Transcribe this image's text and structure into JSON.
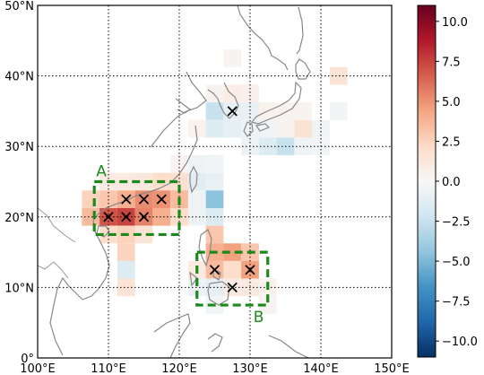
{
  "map": {
    "extent": {
      "lon": [
        100,
        150
      ],
      "lat": [
        0,
        50
      ]
    },
    "lon_ticks": [
      {
        "value": 100,
        "label": "100°E"
      },
      {
        "value": 110,
        "label": "110°E"
      },
      {
        "value": 120,
        "label": "120°E"
      },
      {
        "value": 130,
        "label": "130°E"
      },
      {
        "value": 140,
        "label": "140°E"
      },
      {
        "value": 150,
        "label": "150°E"
      }
    ],
    "lat_ticks": [
      {
        "value": 0,
        "label": "0°"
      },
      {
        "value": 10,
        "label": "10°N"
      },
      {
        "value": 20,
        "label": "20°N"
      },
      {
        "value": 30,
        "label": "30°N"
      },
      {
        "value": 40,
        "label": "40°N"
      },
      {
        "value": 50,
        "label": "50°N"
      }
    ],
    "grid_lon": [
      110,
      120,
      130,
      140
    ],
    "grid_lat": [
      10,
      20,
      30,
      40
    ],
    "grid_style": "dotted",
    "coastline_color": "#888888",
    "cell_size_deg": 2.5,
    "cells": [
      {
        "lon": 127.5,
        "lat": 42.5,
        "v": 0.3
      },
      {
        "lon": 142.5,
        "lat": 40.0,
        "v": 1.5
      },
      {
        "lon": 125.0,
        "lat": 37.5,
        "v": 0.3
      },
      {
        "lon": 127.5,
        "lat": 37.5,
        "v": 0.8
      },
      {
        "lon": 130.0,
        "lat": 37.5,
        "v": 0.6
      },
      {
        "lon": 132.5,
        "lat": 35.0,
        "v": 0.5
      },
      {
        "lon": 135.0,
        "lat": 35.0,
        "v": 0.4
      },
      {
        "lon": 137.5,
        "lat": 35.0,
        "v": 0.3
      },
      {
        "lon": 142.5,
        "lat": 35.0,
        "v": -0.3
      },
      {
        "lon": 125.0,
        "lat": 35.0,
        "v": -2.5
      },
      {
        "lon": 127.5,
        "lat": 35.0,
        "v": -1.0
      },
      {
        "lon": 130.0,
        "lat": 35.0,
        "v": -0.8
      },
      {
        "lon": 122.5,
        "lat": 32.5,
        "v": 0.5
      },
      {
        "lon": 125.0,
        "lat": 32.5,
        "v": -1.5
      },
      {
        "lon": 127.5,
        "lat": 32.5,
        "v": -1.0
      },
      {
        "lon": 130.0,
        "lat": 32.5,
        "v": -0.6
      },
      {
        "lon": 132.5,
        "lat": 32.5,
        "v": -0.4
      },
      {
        "lon": 135.0,
        "lat": 32.5,
        "v": 0.3
      },
      {
        "lon": 137.5,
        "lat": 32.5,
        "v": 1.6
      },
      {
        "lon": 140.0,
        "lat": 32.5,
        "v": -0.4
      },
      {
        "lon": 130.0,
        "lat": 30.0,
        "v": -0.6
      },
      {
        "lon": 132.5,
        "lat": 30.0,
        "v": -1.5
      },
      {
        "lon": 135.0,
        "lat": 30.0,
        "v": -2.5
      },
      {
        "lon": 137.5,
        "lat": 30.0,
        "v": -0.5
      },
      {
        "lon": 140.0,
        "lat": 30.0,
        "v": -0.3
      },
      {
        "lon": 120.0,
        "lat": 27.5,
        "v": 0.3
      },
      {
        "lon": 122.5,
        "lat": 27.5,
        "v": -0.6
      },
      {
        "lon": 125.0,
        "lat": 27.5,
        "v": -0.4
      },
      {
        "lon": 120.0,
        "lat": 25.0,
        "v": 0.4
      },
      {
        "lon": 122.5,
        "lat": 25.0,
        "v": -1.2
      },
      {
        "lon": 125.0,
        "lat": 25.0,
        "v": -0.8
      },
      {
        "lon": 125.0,
        "lat": 22.5,
        "v": -4.5
      },
      {
        "lon": 122.5,
        "lat": 22.5,
        "v": -0.6
      },
      {
        "lon": 125.0,
        "lat": 20.0,
        "v": -1.5
      },
      {
        "lon": 122.5,
        "lat": 20.0,
        "v": -0.5
      },
      {
        "lon": 110.0,
        "lat": 25.0,
        "v": 1.0
      },
      {
        "lon": 112.5,
        "lat": 25.0,
        "v": 1.0
      },
      {
        "lon": 115.0,
        "lat": 25.0,
        "v": 1.2
      },
      {
        "lon": 117.5,
        "lat": 25.0,
        "v": 2.0
      },
      {
        "lon": 120.0,
        "lat": 25.0,
        "v": 1.8
      },
      {
        "lon": 107.5,
        "lat": 22.5,
        "v": 2.5
      },
      {
        "lon": 110.0,
        "lat": 22.5,
        "v": 3.0
      },
      {
        "lon": 112.5,
        "lat": 22.5,
        "v": 4.0
      },
      {
        "lon": 115.0,
        "lat": 22.5,
        "v": 5.2
      },
      {
        "lon": 117.5,
        "lat": 22.5,
        "v": 5.0
      },
      {
        "lon": 120.0,
        "lat": 22.5,
        "v": 3.5
      },
      {
        "lon": 107.5,
        "lat": 20.0,
        "v": 3.5
      },
      {
        "lon": 110.0,
        "lat": 20.0,
        "v": 7.0
      },
      {
        "lon": 112.5,
        "lat": 20.0,
        "v": 7.5
      },
      {
        "lon": 115.0,
        "lat": 20.0,
        "v": 5.5
      },
      {
        "lon": 117.5,
        "lat": 20.0,
        "v": 4.0
      },
      {
        "lon": 120.0,
        "lat": 20.0,
        "v": 2.0
      },
      {
        "lon": 110.0,
        "lat": 17.5,
        "v": 2.0
      },
      {
        "lon": 112.5,
        "lat": 17.5,
        "v": 2.5
      },
      {
        "lon": 115.0,
        "lat": 17.5,
        "v": 1.5
      },
      {
        "lon": 125.0,
        "lat": 17.5,
        "v": 3.0
      },
      {
        "lon": 112.5,
        "lat": 15.0,
        "v": 2.5
      },
      {
        "lon": 125.0,
        "lat": 15.0,
        "v": 4.0
      },
      {
        "lon": 127.5,
        "lat": 15.0,
        "v": 4.5
      },
      {
        "lon": 130.0,
        "lat": 15.0,
        "v": 3.0
      },
      {
        "lon": 112.5,
        "lat": 12.5,
        "v": -1.5
      },
      {
        "lon": 122.5,
        "lat": 12.5,
        "v": 1.0
      },
      {
        "lon": 125.0,
        "lat": 12.5,
        "v": 3.5
      },
      {
        "lon": 127.5,
        "lat": 12.5,
        "v": 2.0
      },
      {
        "lon": 130.0,
        "lat": 12.5,
        "v": 4.5
      },
      {
        "lon": 112.5,
        "lat": 10.0,
        "v": 1.5
      },
      {
        "lon": 122.5,
        "lat": 10.0,
        "v": -0.6
      },
      {
        "lon": 125.0,
        "lat": 10.0,
        "v": -1.0
      },
      {
        "lon": 127.5,
        "lat": 10.0,
        "v": 1.0
      },
      {
        "lon": 130.0,
        "lat": 10.0,
        "v": 1.0
      },
      {
        "lon": 132.5,
        "lat": 10.0,
        "v": 0.5
      },
      {
        "lon": 125.0,
        "lat": 7.5,
        "v": -0.4
      },
      {
        "lon": 132.5,
        "lat": 7.5,
        "v": 0.3
      }
    ],
    "markers": [
      {
        "lon": 127.5,
        "lat": 35.0
      },
      {
        "lon": 112.5,
        "lat": 22.5
      },
      {
        "lon": 115.0,
        "lat": 22.5
      },
      {
        "lon": 117.5,
        "lat": 22.5
      },
      {
        "lon": 110.0,
        "lat": 20.0
      },
      {
        "lon": 112.5,
        "lat": 20.0
      },
      {
        "lon": 115.0,
        "lat": 20.0
      },
      {
        "lon": 125.0,
        "lat": 12.5
      },
      {
        "lon": 130.0,
        "lat": 12.5
      },
      {
        "lon": 127.5,
        "lat": 10.0
      }
    ],
    "regions": [
      {
        "label": "A",
        "lon": [
          108,
          120
        ],
        "lat": [
          17.5,
          25
        ],
        "label_pos": "top-left"
      },
      {
        "label": "B",
        "lon": [
          122.5,
          132.5
        ],
        "lat": [
          7.5,
          15
        ],
        "label_pos": "bottom-right"
      }
    ],
    "region_color": "#1b8a1b"
  },
  "colorbar": {
    "cmap": "RdBu_r",
    "vmin": -11,
    "vmax": 11,
    "ticks": [
      {
        "value": 10.0,
        "label": "10.0"
      },
      {
        "value": 7.5,
        "label": "7.5"
      },
      {
        "value": 5.0,
        "label": "5.0"
      },
      {
        "value": 2.5,
        "label": "2.5"
      },
      {
        "value": 0.0,
        "label": "0.0"
      },
      {
        "value": -2.5,
        "label": "−2.5"
      },
      {
        "value": -5.0,
        "label": "−5.0"
      },
      {
        "value": -7.5,
        "label": "−7.5"
      },
      {
        "value": -10.0,
        "label": "−10.0"
      }
    ]
  }
}
